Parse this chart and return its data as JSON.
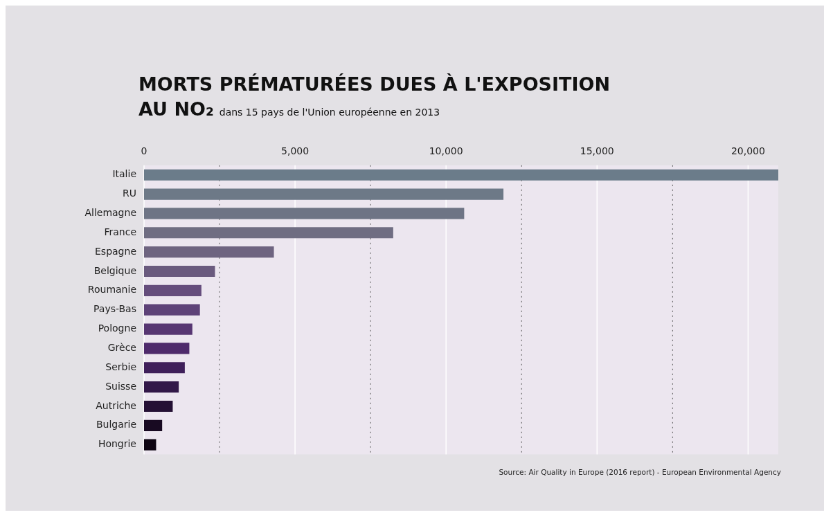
{
  "chart_data": {
    "type": "bar",
    "orientation": "horizontal",
    "title": "MORTS PRÉMATURÉES DUES À L'EXPOSITION AU NO₂",
    "subtitle": "dans 15 pays de l'Union européenne en 2013",
    "categories": [
      "Italie",
      "RU",
      "Allemagne",
      "France",
      "Espagne",
      "Belgique",
      "Roumanie",
      "Pays-Bas",
      "Pologne",
      "Grèce",
      "Serbie",
      "Suisse",
      "Autriche",
      "Bulgarie",
      "Hongrie"
    ],
    "values": [
      21000,
      11900,
      10600,
      8250,
      4300,
      2350,
      1900,
      1850,
      1600,
      1500,
      1350,
      1150,
      950,
      600,
      400
    ],
    "colors": [
      "#6b7c8a",
      "#6d7987",
      "#6e7485",
      "#6f6d82",
      "#6e6480",
      "#6a5a7e",
      "#654d7c",
      "#5e4278",
      "#573672",
      "#4e2a6b",
      "#3f1f5a",
      "#321848",
      "#241034",
      "#180a22",
      "#0e0512"
    ],
    "xlim": [
      0,
      21000
    ],
    "xticks": [
      0,
      {
        "value": 2500,
        "label": null
      },
      {
        "value": 5000,
        "label": "5,000"
      },
      {
        "value": 7500,
        "label": null
      },
      {
        "value": 10000,
        "label": "10,000"
      },
      {
        "value": 12500,
        "label": null
      },
      {
        "value": 15000,
        "label": "15,000"
      },
      {
        "value": 17500,
        "label": null
      },
      {
        "value": 20000,
        "label": "20,000"
      }
    ],
    "grid": "x",
    "legend": false,
    "annotations": [
      "Source: Air Quality in Europe (2016 report) - European Environmental Agency"
    ]
  }
}
